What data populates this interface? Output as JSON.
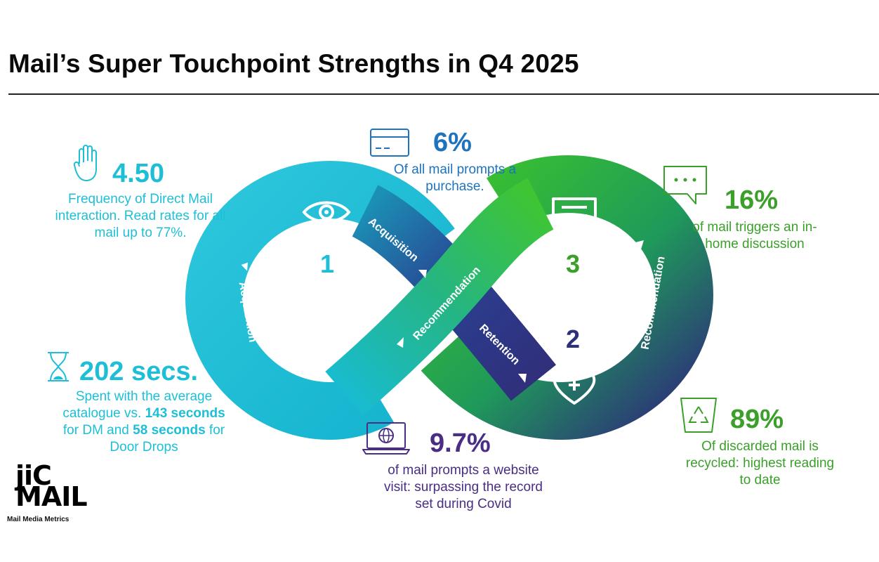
{
  "title": "Mail’s Super Touchpoint Strengths in Q4 2025",
  "colors": {
    "cyan": "#1ebfd6",
    "blue": "#1e73be",
    "green": "#3aa02a",
    "purple": "#4a2d85",
    "navy": "#2e2f7a"
  },
  "stats": {
    "frequency": {
      "icon": "hand-icon",
      "value": "4.50",
      "desc_l1": "Frequency of Direct Mail",
      "desc_l2": "interaction. Read rates for all",
      "desc_l3": "mail up to 77%."
    },
    "purchase": {
      "icon": "credit-card-icon",
      "value": "6%",
      "desc_l1": "Of all mail prompts a",
      "desc_l2": "purchase."
    },
    "discussion": {
      "icon": "speech-bubble-icon",
      "value": "16%",
      "desc_l1": "of mail triggers an in-",
      "desc_l2": "home discussion"
    },
    "time": {
      "icon": "hourglass-icon",
      "value": "202 secs.",
      "desc_l1": "Spent with the average",
      "desc_l2a": "catalogue vs. ",
      "desc_l2b": "143 seconds",
      "desc_l3a": "for DM and ",
      "desc_l3b": "58 seconds",
      "desc_l3c": " for",
      "desc_l4": "Door Drops"
    },
    "website": {
      "icon": "laptop-globe-icon",
      "value": "9.7%",
      "desc_l1": "of mail prompts a website",
      "desc_l2": "visit: surpassing the record",
      "desc_l3": "set during Covid"
    },
    "recycled": {
      "icon": "recycle-bin-icon",
      "value": "89%",
      "desc_l1": "Of discarded mail is",
      "desc_l2": "recycled: highest reading",
      "desc_l3": "to date"
    }
  },
  "diagram": {
    "stage1": "1",
    "stage2": "2",
    "stage3": "3",
    "label_acq_left": "Acquisition",
    "label_acq_top": "Acquisition",
    "label_rec_mid": "Recommendation",
    "label_ret": "Retention",
    "label_rec_right": "Recommendation"
  },
  "logo": {
    "line1": "jiC",
    "line2": "MAIL",
    "sub": "Mail Media Metrics"
  }
}
